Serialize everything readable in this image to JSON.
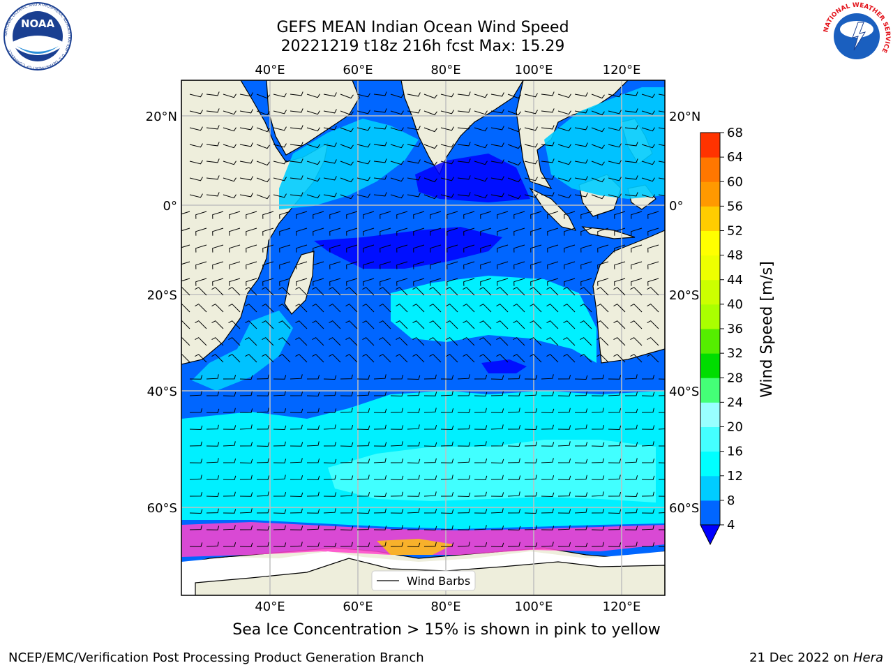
{
  "title": {
    "line1": "GEFS MEAN Indian Ocean Wind Speed",
    "line2": "20221219 t18z 216h fcst   Max: 15.29"
  },
  "map": {
    "lon_ticks": [
      "40°E",
      "60°E",
      "80°E",
      "100°E",
      "120°E"
    ],
    "lat_ticks": [
      "20°N",
      "0°",
      "20°S",
      "40°S",
      "60°S"
    ],
    "lon_values": [
      40,
      60,
      80,
      100,
      120
    ],
    "lat_values": [
      20,
      0,
      -20,
      -40,
      -60
    ],
    "legend_label": "Wind Barbs",
    "colors": {
      "land": "#eeeedc",
      "ice_shelf": "#ffffff",
      "grid": "#bfbfbf"
    }
  },
  "colorbar": {
    "title": "Wind Speed [m/s]",
    "ticks": [
      "4",
      "8",
      "12",
      "16",
      "20",
      "24",
      "28",
      "32",
      "36",
      "40",
      "44",
      "48",
      "52",
      "56",
      "60",
      "64",
      "68"
    ],
    "colors": [
      "#0066ff",
      "#00ccff",
      "#00ffff",
      "#44ffff",
      "#99ffff",
      "#44ff77",
      "#00dd00",
      "#55ee00",
      "#aaff00",
      "#ccff00",
      "#eeff00",
      "#ffff00",
      "#ffcc00",
      "#ff9900",
      "#ff7700",
      "#ff3300",
      "#ff0000"
    ],
    "underflow_color": "#0000ff"
  },
  "ice_note": "Sea Ice Concentration > 15% is shown in pink to yellow",
  "footer": {
    "left": "NCEP/EMC/Verification Post Processing Product Generation Branch",
    "right_prefix": "21 Dec 2022 on",
    "right_host": "Hera"
  },
  "logos": {
    "noaa": "NOAA",
    "noaa_ring": "NATIONAL OCEANIC AND ATMOSPHERIC ADMINISTRATION · U.S. DEPARTMENT OF COMMERCE",
    "nws_ring": "NATIONAL WEATHER SERVICE"
  }
}
